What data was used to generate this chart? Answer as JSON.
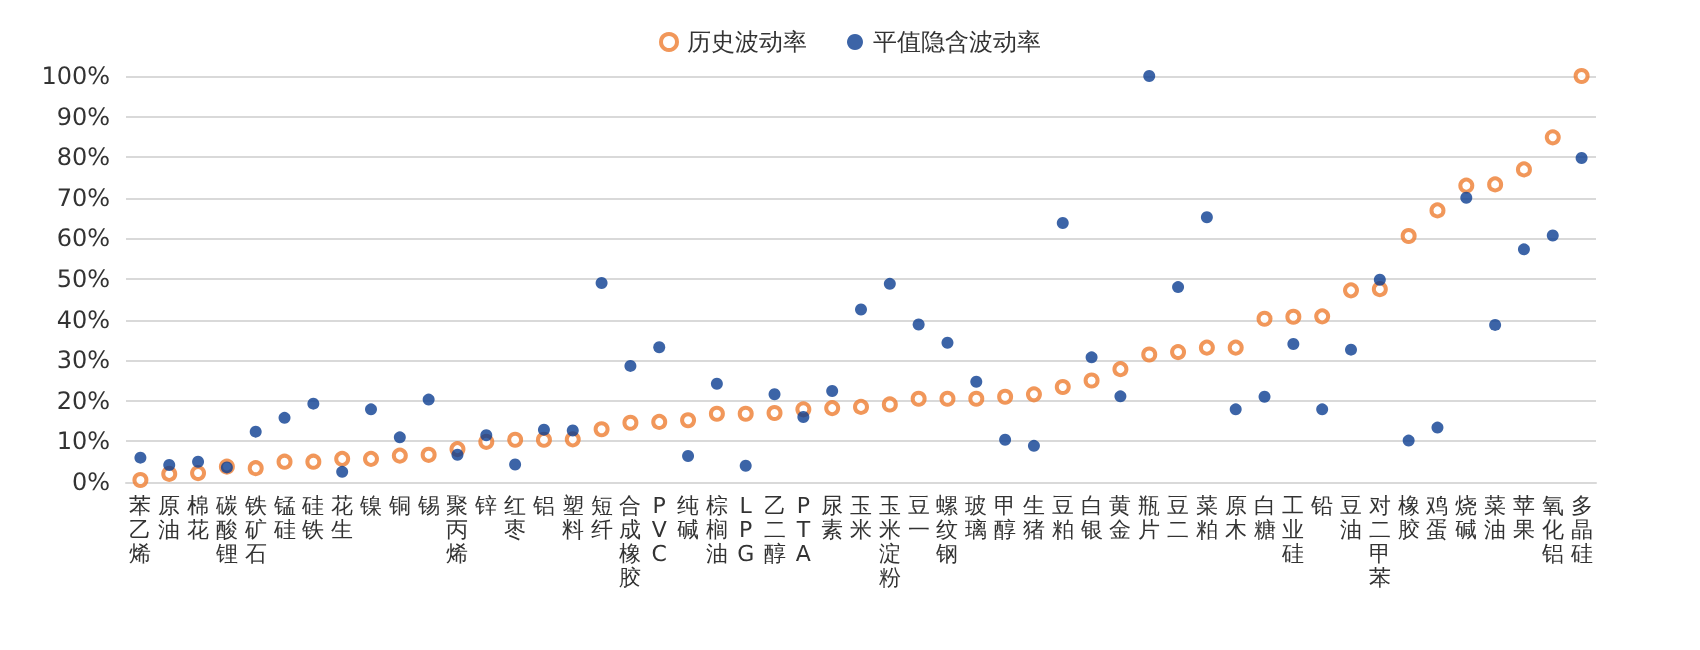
{
  "chart_data": {
    "type": "scatter",
    "categories": [
      "苯乙烯",
      "原油",
      "棉花",
      "碳酸锂",
      "铁矿石",
      "锰硅",
      "硅铁",
      "花生",
      "镍",
      "铜",
      "锡",
      "聚丙烯",
      "锌",
      "红枣",
      "铝",
      "塑料",
      "短纤",
      "合成橡胶",
      "PVC",
      "纯碱",
      "棕榈油",
      "LPG",
      "乙二醇",
      "PTA",
      "尿素",
      "玉米",
      "玉米淀粉",
      "豆一",
      "螺纹钢",
      "玻璃",
      "甲醇",
      "生猪",
      "豆粕",
      "白银",
      "黄金",
      "瓶片",
      "豆二",
      "菜粕",
      "原木",
      "白糖",
      "工业硅",
      "铅",
      "豆油",
      "对二甲苯",
      "橡胶",
      "鸡蛋",
      "烧碱",
      "菜油",
      "苹果",
      "氧化铝",
      "多晶硅"
    ],
    "series": [
      {
        "name": "历史波动率",
        "color": "#ed7d31",
        "values": [
          0.5,
          2,
          2.2,
          3.8,
          3.4,
          5,
          5,
          5.7,
          5.7,
          6.5,
          6.7,
          8.1,
          9.9,
          10.4,
          10.4,
          10.5,
          13,
          14.6,
          14.8,
          15.2,
          16.8,
          16.8,
          17,
          17.9,
          18.2,
          18.5,
          19.1,
          20.5,
          20.5,
          20.5,
          21,
          21.6,
          23.4,
          25,
          27.8,
          31.4,
          32,
          33.1,
          33.1,
          40.2,
          40.7,
          40.8,
          47.2,
          47.5,
          60.6,
          66.9,
          73,
          73.3,
          77,
          84.9,
          100
        ]
      },
      {
        "name": "平值隐含波动率",
        "color": "#0b3d91",
        "values": [
          6,
          4.2,
          5,
          3.6,
          12.4,
          15.8,
          19.3,
          2.5,
          17.9,
          11,
          20.3,
          6.7,
          11.5,
          4.3,
          12.9,
          12.7,
          49,
          28.6,
          33.2,
          6.4,
          24.2,
          4,
          21.6,
          16,
          22.4,
          42.5,
          48.8,
          38.8,
          34.3,
          24.7,
          10.4,
          8.9,
          63.8,
          30.7,
          21.1,
          100,
          48,
          65.2,
          17.9,
          21,
          34,
          17.9,
          32.6,
          49.8,
          10.2,
          13.4,
          70,
          38.7,
          57.3,
          60.7,
          79.8
        ]
      }
    ],
    "ylim": [
      0,
      100
    ],
    "yticks": [
      {
        "value": 0,
        "label": "0%"
      },
      {
        "value": 10,
        "label": "10%"
      },
      {
        "value": 20,
        "label": "20%"
      },
      {
        "value": 30,
        "label": "30%"
      },
      {
        "value": 40,
        "label": "40%"
      },
      {
        "value": 50,
        "label": "50%"
      },
      {
        "value": 60,
        "label": "60%"
      },
      {
        "value": 70,
        "label": "70%"
      },
      {
        "value": 80,
        "label": "80%"
      },
      {
        "value": 90,
        "label": "90%"
      },
      {
        "value": 100,
        "label": "100%"
      }
    ],
    "grid": "y",
    "legend": "top",
    "marker": "circle"
  }
}
